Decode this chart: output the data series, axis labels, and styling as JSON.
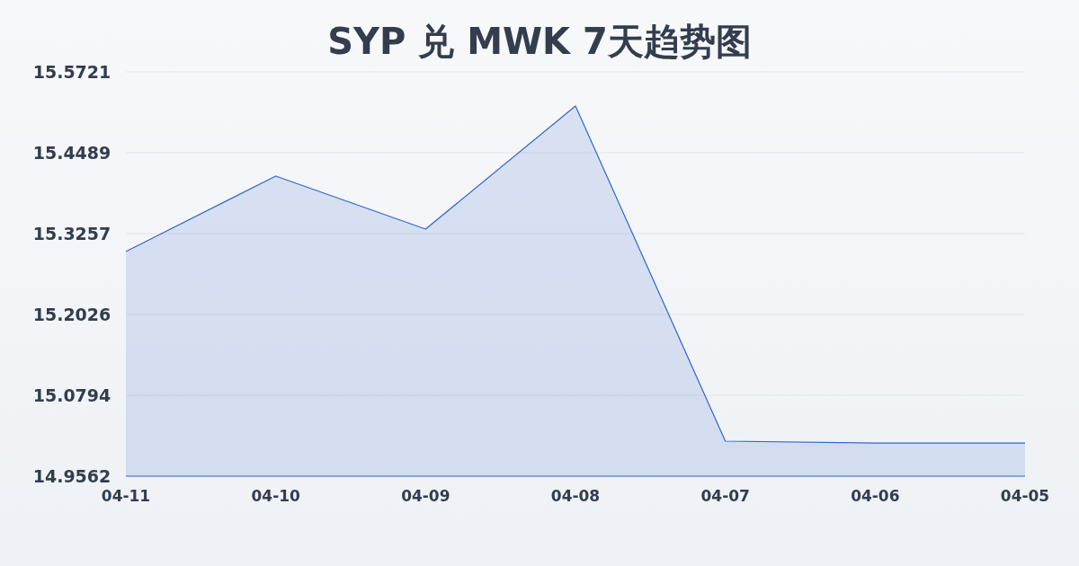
{
  "chart_data": {
    "type": "area",
    "title": "SYP 兑 MWK 7天趋势图",
    "categories": [
      "04-11",
      "04-10",
      "04-09",
      "04-08",
      "04-07",
      "04-06",
      "04-05"
    ],
    "series": [
      {
        "color": "#3366cc",
        "values": [
          15.2984,
          15.4134,
          15.3326,
          15.5201,
          15.0096,
          15.0068,
          15.0068
        ]
      }
    ],
    "ylim": [
      14.9562,
      15.5721
    ],
    "yticks": [
      14.9562,
      15.0794,
      15.2026,
      15.3257,
      15.4489,
      15.5721
    ],
    "grid": "y"
  }
}
